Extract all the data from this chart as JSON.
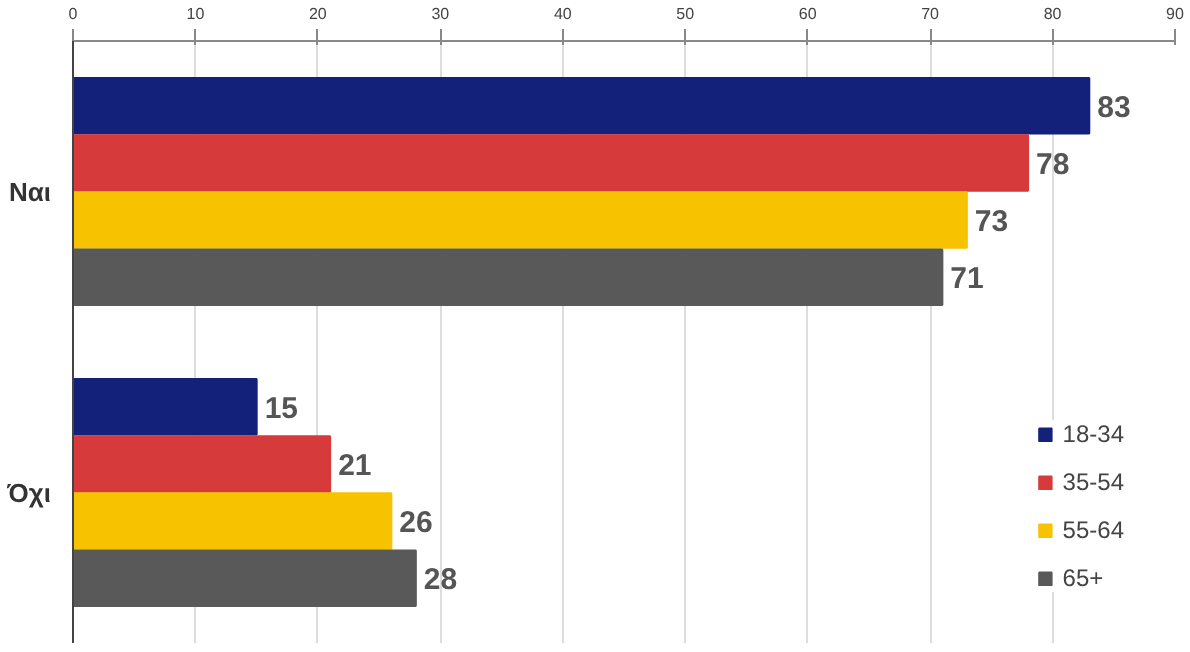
{
  "chart_data": {
    "type": "bar",
    "orientation": "horizontal",
    "categories": [
      "Ναι",
      "Όχι"
    ],
    "series": [
      {
        "name": "18-34",
        "color": "#14217a",
        "values": [
          83,
          15
        ]
      },
      {
        "name": "35-54",
        "color": "#d63a3a",
        "values": [
          78,
          21
        ]
      },
      {
        "name": "55-64",
        "color": "#f7c200",
        "values": [
          73,
          26
        ]
      },
      {
        "name": "65+",
        "color": "#595959",
        "values": [
          71,
          28
        ]
      }
    ],
    "xlim": [
      0,
      90
    ],
    "xticks": [
      0,
      10,
      20,
      30,
      40,
      50,
      60,
      70,
      80,
      90
    ],
    "grid": "x",
    "legend": "bottom right",
    "data_labels": true
  }
}
